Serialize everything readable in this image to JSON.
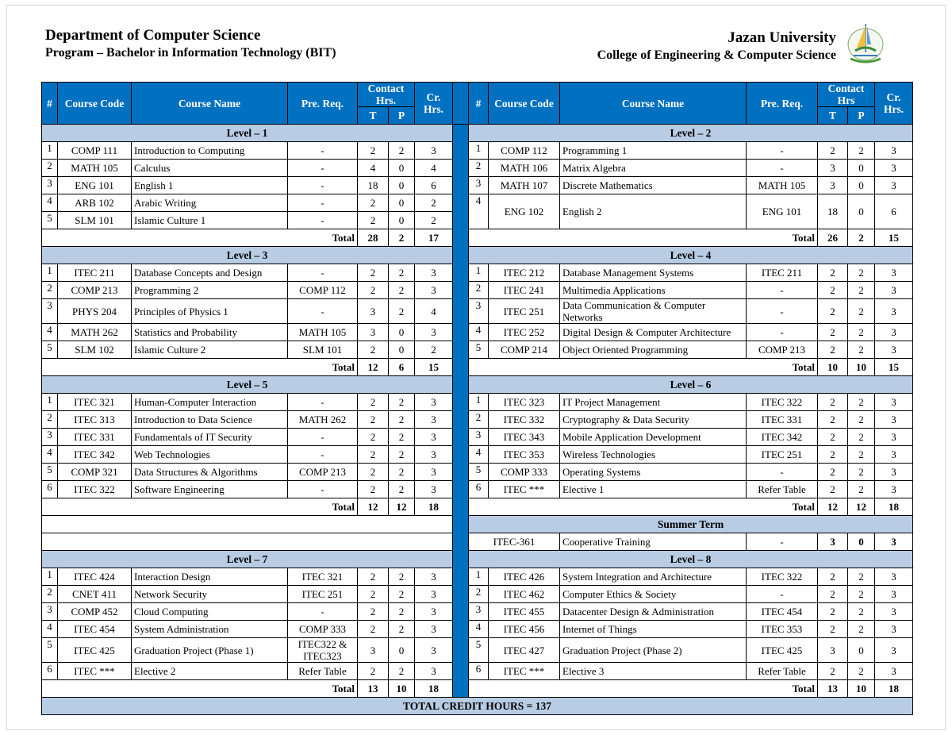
{
  "header": {
    "department": "Department of Computer Science",
    "program": "Program – Bachelor in Information Technology (BIT)",
    "university": "Jazan University",
    "college": "College of Engineering & Computer Science",
    "logo_text": "Jazan University"
  },
  "colors": {
    "header_blue": "#0070c0",
    "level_band": "#b8cce4"
  },
  "columns": {
    "left": {
      "num": "#",
      "code": "Course Code",
      "name": "Course Name",
      "prereq": "Pre. Req.",
      "contact": "Contact Hrs.",
      "t": "T",
      "p": "P",
      "cr": "Cr. Hrs."
    },
    "right": {
      "num": "#",
      "code": "Course Code",
      "name": "Course Name",
      "prereq": "Pre. Req.",
      "contact": "Contact Hrs",
      "t": "T",
      "p": "P",
      "cr": "Cr. Hrs."
    }
  },
  "blocks": [
    {
      "left": {
        "level": "Level – 1",
        "rows": [
          [
            "1",
            "COMP 111",
            "Introduction to Computing",
            "-",
            "2",
            "2",
            "3"
          ],
          [
            "2",
            "MATH 105",
            "Calculus",
            "-",
            "4",
            "0",
            "4"
          ],
          [
            "3",
            "ENG 101",
            "English 1",
            "-",
            "18",
            "0",
            "6"
          ],
          [
            "4",
            "ARB 102",
            "Arabic Writing",
            "-",
            "2",
            "0",
            "2"
          ],
          [
            "5",
            "SLM 101",
            "Islamic Culture 1",
            "-",
            "2",
            "0",
            "2"
          ]
        ],
        "total": {
          "label": "Total",
          "t": "28",
          "p": "2",
          "cr": "17"
        }
      },
      "right": {
        "level": "Level – 2",
        "rows": [
          [
            "1",
            "COMP 112",
            "Programming 1",
            "-",
            "2",
            "2",
            "3"
          ],
          [
            "2",
            "MATH 106",
            "Matrix Algebra",
            "-",
            "3",
            "0",
            "3"
          ],
          [
            "3",
            "MATH 107",
            "Discrete Mathematics",
            "MATH 105",
            "3",
            "0",
            "3"
          ],
          [
            "4",
            "ENG 102",
            "English 2",
            "ENG 101",
            "18",
            "0",
            "6"
          ]
        ],
        "total": {
          "label": "Total",
          "t": "26",
          "p": "2",
          "cr": "15"
        }
      }
    },
    {
      "left": {
        "level": "Level – 3",
        "rows": [
          [
            "1",
            "ITEC 211",
            "Database Concepts and Design",
            "-",
            "2",
            "2",
            "3"
          ],
          [
            "2",
            "COMP 213",
            "Programming 2",
            "COMP 112",
            "2",
            "2",
            "3"
          ],
          [
            "3",
            "PHYS 204",
            "Principles of Physics 1",
            "-",
            "3",
            "2",
            "4"
          ],
          [
            "4",
            "MATH 262",
            "Statistics and Probability",
            "MATH 105",
            "3",
            "0",
            "3"
          ],
          [
            "5",
            "SLM 102",
            "Islamic Culture 2",
            "SLM 101",
            "2",
            "0",
            "2"
          ]
        ],
        "total": {
          "label": "Total",
          "t": "12",
          "p": "6",
          "cr": "15"
        }
      },
      "right": {
        "level": "Level – 4",
        "rows": [
          [
            "1",
            "ITEC 212",
            "Database Management Systems",
            "ITEC 211",
            "2",
            "2",
            "3"
          ],
          [
            "2",
            "ITEC 241",
            "Multimedia Applications",
            "-",
            "2",
            "2",
            "3"
          ],
          [
            "3",
            "ITEC 251",
            "Data Communication & Computer Networks",
            "-",
            "2",
            "2",
            "3"
          ],
          [
            "4",
            "ITEC 252",
            "Digital Design & Computer Architecture",
            "-",
            "2",
            "2",
            "3"
          ],
          [
            "5",
            "COMP 214",
            "Object Oriented Programming",
            "COMP 213",
            "2",
            "2",
            "3"
          ]
        ],
        "total": {
          "label": "Total",
          "t": "10",
          "p": "10",
          "cr": "15"
        }
      }
    },
    {
      "left": {
        "level": "Level – 5",
        "rows": [
          [
            "1",
            "ITEC 321",
            "Human-Computer Interaction",
            "-",
            "2",
            "2",
            "3"
          ],
          [
            "2",
            "ITEC 313",
            "Introduction to Data Science",
            "MATH 262",
            "2",
            "2",
            "3"
          ],
          [
            "3",
            "ITEC 331",
            "Fundamentals of IT Security",
            "-",
            "2",
            "2",
            "3"
          ],
          [
            "4",
            "ITEC 342",
            "Web Technologies",
            "-",
            "2",
            "2",
            "3"
          ],
          [
            "5",
            "COMP 321",
            "Data Structures & Algorithms",
            "COMP 213",
            "2",
            "2",
            "3"
          ],
          [
            "6",
            "ITEC 322",
            "Software Engineering",
            "-",
            "2",
            "2",
            "3"
          ]
        ],
        "total": {
          "label": "Total",
          "t": "12",
          "p": "12",
          "cr": "18"
        }
      },
      "right": {
        "level": "Level – 6",
        "rows": [
          [
            "1",
            "ITEC 323",
            "IT Project Management",
            "ITEC 322",
            "2",
            "2",
            "3"
          ],
          [
            "2",
            "ITEC 332",
            "Cryptography & Data Security",
            "ITEC 331",
            "2",
            "2",
            "3"
          ],
          [
            "3",
            "ITEC 343",
            "Mobile Application Development",
            "ITEC 342",
            "2",
            "2",
            "3"
          ],
          [
            "4",
            "ITEC 353",
            "Wireless Technologies",
            "ITEC 251",
            "2",
            "2",
            "3"
          ],
          [
            "5",
            "COMP 333",
            "Operating Systems",
            "-",
            "2",
            "2",
            "3"
          ],
          [
            "6",
            "ITEC ***",
            "Elective 1",
            "Refer Table",
            "2",
            "2",
            "3"
          ]
        ],
        "total": {
          "label": "Total",
          "t": "12",
          "p": "12",
          "cr": "18"
        }
      }
    }
  ],
  "summer": {
    "heading": "Summer Term",
    "code": "ITEC-361",
    "name": "Cooperative Training",
    "prereq": "-",
    "t": "3",
    "p": "0",
    "cr": "3"
  },
  "final_block": {
    "left": {
      "level": "Level – 7",
      "rows": [
        [
          "1",
          "ITEC 424",
          "Interaction Design",
          "ITEC 321",
          "2",
          "2",
          "3"
        ],
        [
          "2",
          "CNET 411",
          "Network Security",
          "ITEC 251",
          "2",
          "2",
          "3"
        ],
        [
          "3",
          "COMP 452",
          "Cloud Computing",
          "-",
          "2",
          "2",
          "3"
        ],
        [
          "4",
          "ITEC 454",
          "System Administration",
          "COMP 333",
          "2",
          "2",
          "3"
        ],
        [
          "5",
          "ITEC 425",
          "Graduation Project (Phase 1)",
          "ITEC322 & ITEC323",
          "3",
          "0",
          "3"
        ],
        [
          "6",
          "ITEC ***",
          "Elective 2",
          "Refer Table",
          "2",
          "2",
          "3"
        ]
      ],
      "total": {
        "label": "Total",
        "t": "13",
        "p": "10",
        "cr": "18"
      }
    },
    "right": {
      "level": "Level – 8",
      "rows": [
        [
          "1",
          "ITEC 426",
          "System Integration and Architecture",
          "ITEC 322",
          "2",
          "2",
          "3"
        ],
        [
          "2",
          "ITEC 462",
          "Computer Ethics & Society",
          "-",
          "2",
          "2",
          "3"
        ],
        [
          "3",
          "ITEC 455",
          "Datacenter Design & Administration",
          "ITEC 454",
          "2",
          "2",
          "3"
        ],
        [
          "4",
          "ITEC 456",
          "Internet of Things",
          "ITEC 353",
          "2",
          "2",
          "3"
        ],
        [
          "5",
          "ITEC 427",
          "Graduation Project (Phase 2)",
          "ITEC 425",
          "3",
          "0",
          "3"
        ],
        [
          "6",
          "ITEC ***",
          "Elective 3",
          "Refer Table",
          "2",
          "2",
          "3"
        ]
      ],
      "total": {
        "label": "Total",
        "t": "13",
        "p": "10",
        "cr": "18"
      }
    }
  },
  "grand_total": "TOTAL CREDIT HOURS = 137"
}
